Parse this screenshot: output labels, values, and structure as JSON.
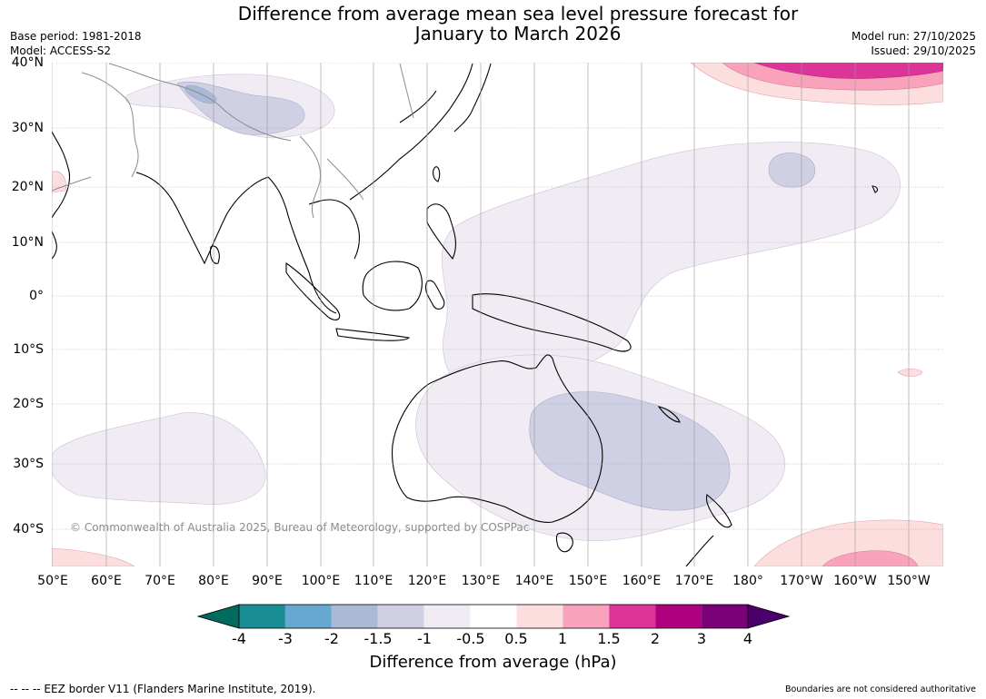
{
  "title_line1": "Difference from average mean sea level pressure forecast for",
  "title_line2": "January to March 2026",
  "meta_left": {
    "base_period": "Base period: 1981-2018",
    "model": "Model: ACCESS-S2"
  },
  "meta_right": {
    "model_run": "Model run: 27/10/2025",
    "issued": "Issued: 29/10/2025"
  },
  "lat_labels": [
    "40°N",
    "30°N",
    "20°N",
    "10°N",
    "0°",
    "10°S",
    "20°S",
    "30°S",
    "40°S"
  ],
  "lon_labels": [
    "50°E",
    "60°E",
    "70°E",
    "80°E",
    "90°E",
    "100°E",
    "110°E",
    "120°E",
    "130°E",
    "140°E",
    "150°E",
    "160°E",
    "170°E",
    "180°",
    "170°W",
    "160°W",
    "150°W"
  ],
  "copyright": "© Commonwealth of Australia 2025, Bureau of Meteorology, supported by COSPPac",
  "colorbar": {
    "ticks": [
      "-4",
      "-3",
      "-2",
      "-1.5",
      "-1",
      "-0.5",
      "0.5",
      "1",
      "1.5",
      "2",
      "3",
      "4"
    ],
    "colors": [
      "#1a8c94",
      "#66a8cf",
      "#a9b9d6",
      "#cfd0e4",
      "#f1ecf4",
      "#ffffff",
      "#fddede",
      "#f8a3bb",
      "#dd3497",
      "#ae017e",
      "#7a0177"
    ],
    "under_color": "#006b5e",
    "over_color": "#49006a",
    "label": "Difference from average (hPa)"
  },
  "footer_left": "--  --  -- EEZ border V11 (Flanders Marine Institute, 2019).",
  "footer_right": "Boundaries are not considered authoritative"
}
